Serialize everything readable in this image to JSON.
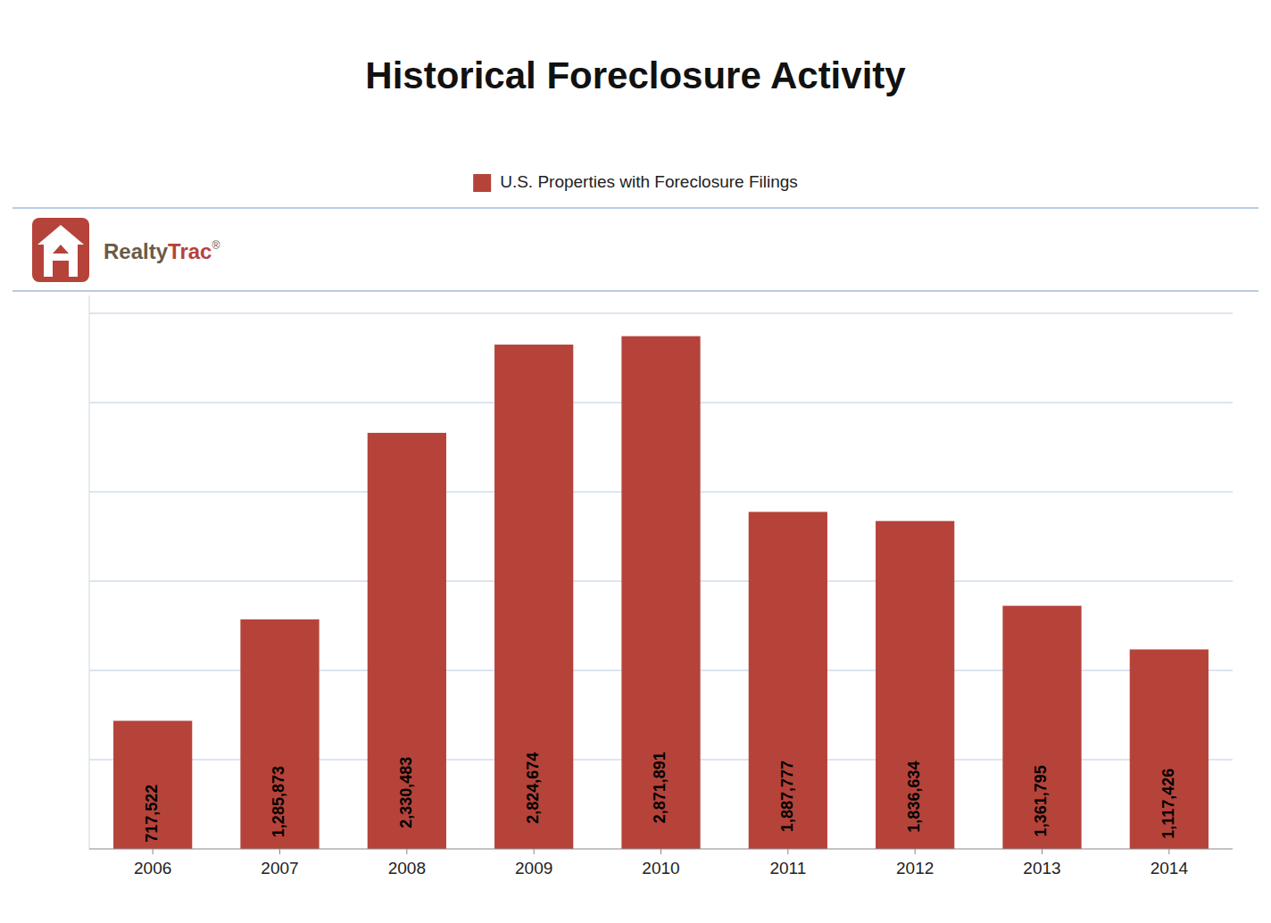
{
  "chart_data": {
    "type": "bar",
    "title": "Historical Foreclosure Activity",
    "categories": [
      "2006",
      "2007",
      "2008",
      "2009",
      "2010",
      "2011",
      "2012",
      "2013",
      "2014"
    ],
    "series": [
      {
        "name": "U.S. Properties with Foreclosure Filings",
        "color": "#B5433A",
        "values": [
          717522,
          1285873,
          2330483,
          2824674,
          2871891,
          1887777,
          1836634,
          1361795,
          1117426
        ],
        "value_labels": [
          "717,522",
          "1,285,873",
          "2,330,483",
          "2,824,674",
          "2,871,891",
          "1,887,777",
          "1,836,634",
          "1,361,795",
          "1,117,426"
        ]
      }
    ],
    "ylim": [
      0,
      3100000
    ],
    "yticks": [
      500000,
      1000000,
      1500000,
      2000000,
      2500000,
      3000000
    ],
    "grid": true,
    "legend": "top",
    "data_labels": true,
    "tick_labels": "x",
    "annotations": [
      "Realty",
      "Trac",
      "®"
    ]
  }
}
